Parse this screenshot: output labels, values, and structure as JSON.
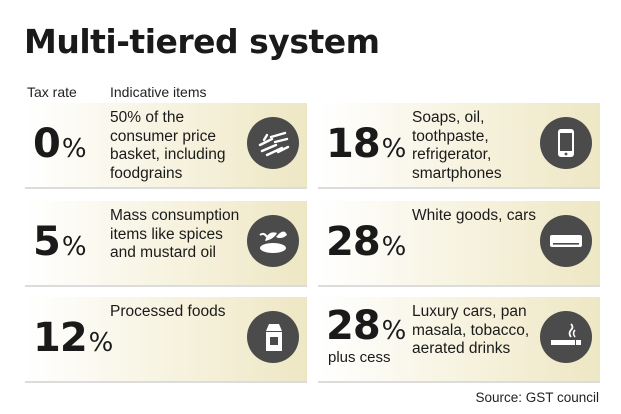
{
  "title": "Multi-tiered system",
  "headers": {
    "rate": "Tax rate",
    "items": "Indicative items"
  },
  "tiers": [
    {
      "rate": "0",
      "pct": "%",
      "sub": "",
      "desc": "50% of the consumer price basket, including foodgrains",
      "icon": "grains-icon"
    },
    {
      "rate": "5",
      "pct": "%",
      "sub": "",
      "desc": "Mass consumption items like spices and mustard oil",
      "icon": "spices-icon"
    },
    {
      "rate": "12",
      "pct": "%",
      "sub": "",
      "desc": "Processed foods",
      "icon": "milk-carton-icon"
    },
    {
      "rate": "18",
      "pct": "%",
      "sub": "",
      "desc": "Soaps, oil, toothpaste, refrigerator, smartphones",
      "icon": "smartphone-icon"
    },
    {
      "rate": "28",
      "pct": "%",
      "sub": "",
      "desc": "White goods, cars",
      "icon": "air-conditioner-icon"
    },
    {
      "rate": "28",
      "pct": "%",
      "sub": "plus cess",
      "desc": "Luxury cars, pan masala, tobacco, aerated drinks",
      "icon": "cigarette-icon"
    }
  ],
  "source": "Source: GST council"
}
